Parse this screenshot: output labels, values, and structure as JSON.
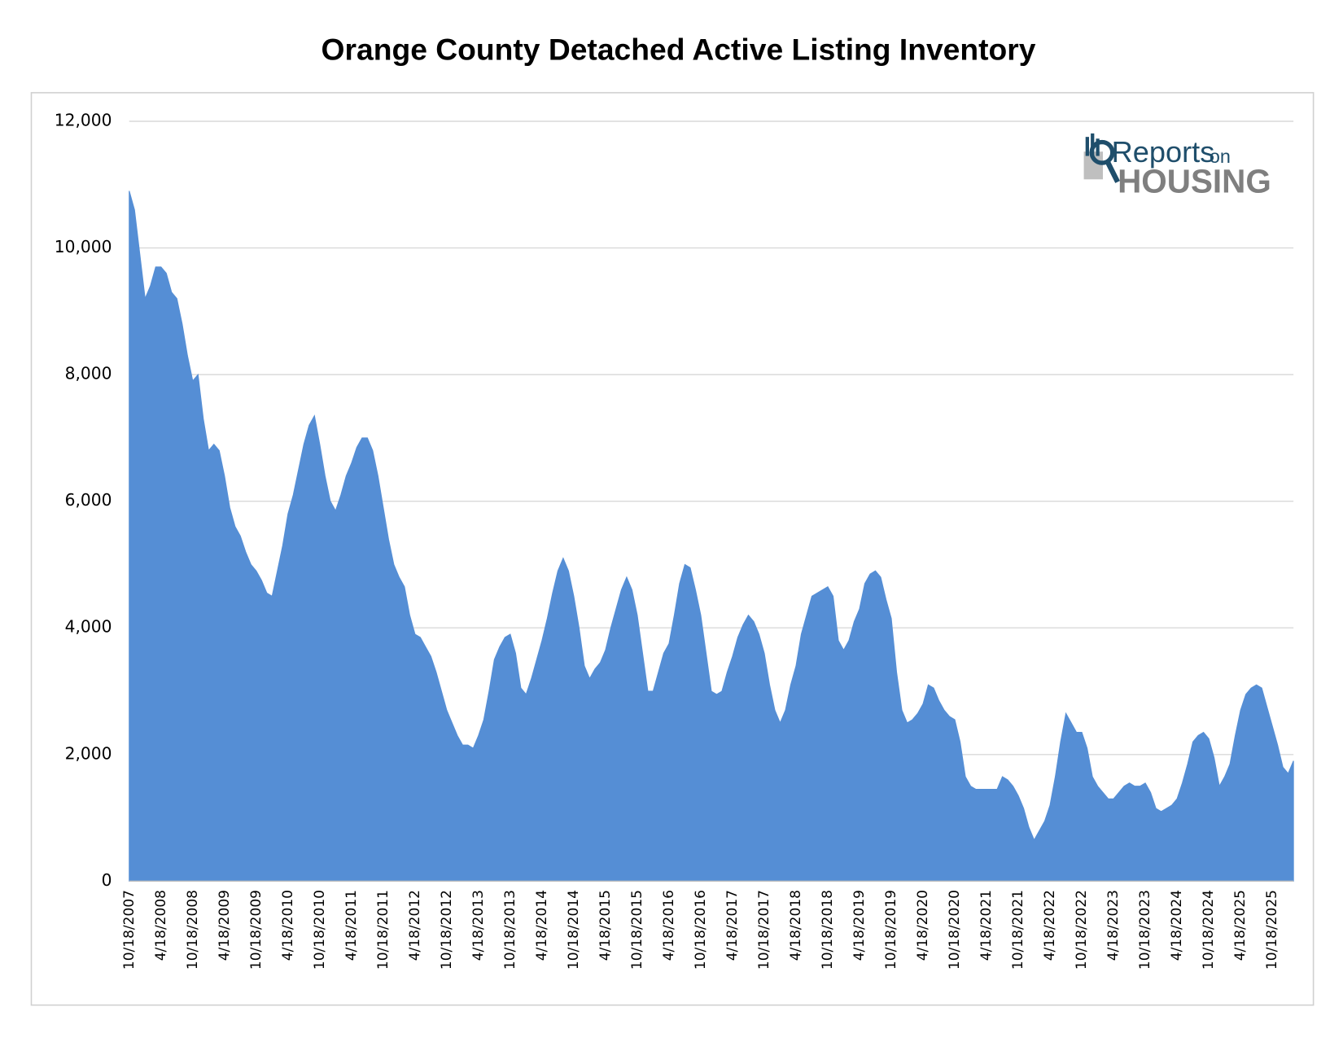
{
  "chart_data": {
    "type": "area",
    "title": "Orange County Detached Active Listing Inventory",
    "annotations": [
      "Reports",
      "on",
      "HOUSING"
    ],
    "color": "#558ed5",
    "grid": true,
    "ylim": [
      0,
      12000
    ],
    "yticks": [
      0,
      {
        "value": 2000,
        "label": "2,000"
      },
      {
        "value": 4000,
        "label": "4,000"
      },
      {
        "value": 6000,
        "label": "6,000"
      },
      {
        "value": 8000,
        "label": "8,000"
      },
      {
        "value": 10000,
        "label": "10,000"
      },
      {
        "value": 12000,
        "label": "12,000"
      }
    ],
    "categories": [
      "10/18/2007",
      null,
      null,
      null,
      null,
      null,
      "4/18/2008",
      null,
      null,
      null,
      null,
      null,
      "10/18/2008",
      null,
      null,
      null,
      null,
      null,
      "4/18/2009",
      null,
      null,
      null,
      null,
      null,
      "10/18/2009",
      null,
      null,
      null,
      null,
      null,
      "4/18/2010",
      null,
      null,
      null,
      null,
      null,
      "10/18/2010",
      null,
      null,
      null,
      null,
      null,
      "4/18/2011",
      null,
      null,
      null,
      null,
      null,
      "10/18/2011",
      null,
      null,
      null,
      null,
      null,
      "4/18/2012",
      null,
      null,
      null,
      null,
      null,
      "10/18/2012",
      null,
      null,
      null,
      null,
      null,
      "4/18/2013",
      null,
      null,
      null,
      null,
      null,
      "10/18/2013",
      null,
      null,
      null,
      null,
      null,
      "4/18/2014",
      null,
      null,
      null,
      null,
      null,
      "10/18/2014",
      null,
      null,
      null,
      null,
      null,
      "4/18/2015",
      null,
      null,
      null,
      null,
      null,
      "10/18/2015",
      null,
      null,
      null,
      null,
      null,
      "4/18/2016",
      null,
      null,
      null,
      null,
      null,
      "10/18/2016",
      null,
      null,
      null,
      null,
      null,
      "4/18/2017",
      null,
      null,
      null,
      null,
      null,
      "10/18/2017",
      null,
      null,
      null,
      null,
      null,
      "4/18/2018",
      null,
      null,
      null,
      null,
      null,
      "10/18/2018",
      null,
      null,
      null,
      null,
      null,
      "4/18/2019",
      null,
      null,
      null,
      null,
      null,
      "10/18/2019",
      null,
      null,
      null,
      null,
      null,
      "4/18/2020",
      null,
      null,
      null,
      null,
      null,
      "10/18/2020",
      null,
      null,
      null,
      null,
      null,
      "4/18/2021",
      null,
      null,
      null,
      null,
      null,
      "10/18/2021",
      null,
      null,
      null,
      null,
      null,
      "4/18/2022",
      null,
      null,
      null,
      null,
      null,
      "10/18/2022",
      null,
      null,
      null,
      null,
      null,
      "4/18/2023",
      null,
      null,
      null,
      null,
      null,
      "10/18/2023",
      null,
      null,
      null,
      null,
      null,
      "4/18/2024",
      null,
      null,
      null,
      null,
      null,
      "10/18/2024",
      null,
      null,
      null,
      null,
      null,
      "4/18/2025",
      null,
      null,
      null,
      null,
      null,
      "10/18/2025",
      null,
      null,
      null,
      null
    ],
    "values": [
      10900,
      10600,
      9900,
      9200,
      9400,
      9700,
      9700,
      9600,
      9300,
      9200,
      8800,
      8300,
      7900,
      8000,
      7300,
      6800,
      6900,
      6800,
      6400,
      5900,
      5600,
      5450,
      5200,
      5000,
      4900,
      4750,
      4550,
      4500,
      4900,
      5300,
      5800,
      6100,
      6500,
      6900,
      7200,
      7350,
      6900,
      6400,
      6000,
      5850,
      6100,
      6400,
      6600,
      6850,
      7000,
      7000,
      6800,
      6400,
      5900,
      5400,
      5000,
      4800,
      4650,
      4200,
      3900,
      3850,
      3700,
      3550,
      3300,
      3000,
      2700,
      2500,
      2300,
      2150,
      2150,
      2100,
      2300,
      2550,
      3000,
      3500,
      3700,
      3850,
      3900,
      3600,
      3050,
      2950,
      3200,
      3500,
      3800,
      4150,
      4550,
      4900,
      5100,
      4900,
      4500,
      4000,
      3400,
      3200,
      3350,
      3450,
      3650,
      4000,
      4300,
      4600,
      4800,
      4600,
      4200,
      3600,
      3000,
      3000,
      3300,
      3600,
      3750,
      4200,
      4700,
      5000,
      4950,
      4600,
      4200,
      3600,
      3000,
      2950,
      3000,
      3300,
      3550,
      3850,
      4050,
      4200,
      4100,
      3900,
      3600,
      3100,
      2700,
      2500,
      2700,
      3100,
      3400,
      3900,
      4200,
      4500,
      4550,
      4600,
      4650,
      4500,
      3800,
      3650,
      3800,
      4100,
      4300,
      4700,
      4850,
      4900,
      4800,
      4450,
      4150,
      3300,
      2700,
      2500,
      2550,
      2650,
      2800,
      3100,
      3050,
      2850,
      2700,
      2600,
      2550,
      2200,
      1650,
      1500,
      1450,
      1450,
      1450,
      1450,
      1450,
      1650,
      1600,
      1500,
      1350,
      1150,
      850,
      650,
      800,
      950,
      1200,
      1650,
      2200,
      2650,
      2500,
      2350,
      2350,
      2100,
      1650,
      1500,
      1400,
      1300,
      1300,
      1400,
      1500,
      1550,
      1500,
      1500,
      1550,
      1400,
      1150,
      1100,
      1150,
      1200,
      1300,
      1550,
      1850,
      2200,
      2300,
      2350,
      2250,
      1950,
      1500,
      1650,
      1850,
      2300,
      2700,
      2950,
      3050,
      3100,
      3050,
      2750,
      2450,
      2150,
      1800,
      1700,
      1900
    ]
  }
}
